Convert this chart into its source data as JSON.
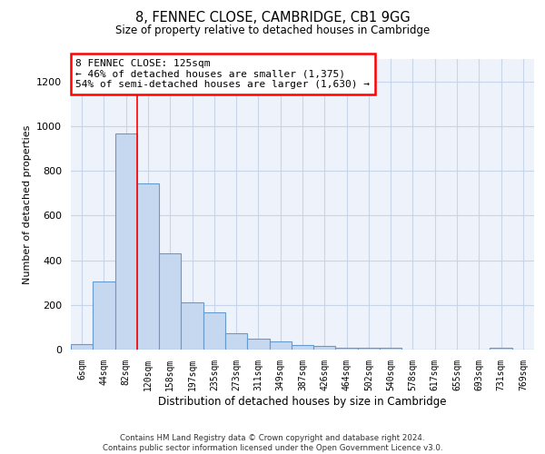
{
  "title": "8, FENNEC CLOSE, CAMBRIDGE, CB1 9GG",
  "subtitle": "Size of property relative to detached houses in Cambridge",
  "xlabel": "Distribution of detached houses by size in Cambridge",
  "ylabel": "Number of detached properties",
  "bar_color": "#c5d8f0",
  "bar_edge_color": "#6699cc",
  "categories": [
    "6sqm",
    "44sqm",
    "82sqm",
    "120sqm",
    "158sqm",
    "197sqm",
    "235sqm",
    "273sqm",
    "311sqm",
    "349sqm",
    "387sqm",
    "426sqm",
    "464sqm",
    "502sqm",
    "540sqm",
    "578sqm",
    "617sqm",
    "655sqm",
    "693sqm",
    "731sqm",
    "769sqm"
  ],
  "values": [
    25,
    305,
    965,
    745,
    430,
    210,
    165,
    75,
    50,
    35,
    20,
    15,
    10,
    10,
    10,
    0,
    0,
    0,
    0,
    10,
    0
  ],
  "ylim": [
    0,
    1300
  ],
  "yticks": [
    0,
    200,
    400,
    600,
    800,
    1000,
    1200
  ],
  "annotation_line1": "8 FENNEC CLOSE: 125sqm",
  "annotation_line2": "← 46% of detached houses are smaller (1,375)",
  "annotation_line3": "54% of semi-detached houses are larger (1,630) →",
  "vline_x_index": 2.5,
  "footer1": "Contains HM Land Registry data © Crown copyright and database right 2024.",
  "footer2": "Contains public sector information licensed under the Open Government Licence v3.0.",
  "grid_color": "#c8d4e8",
  "background_color": "#eef2fb"
}
